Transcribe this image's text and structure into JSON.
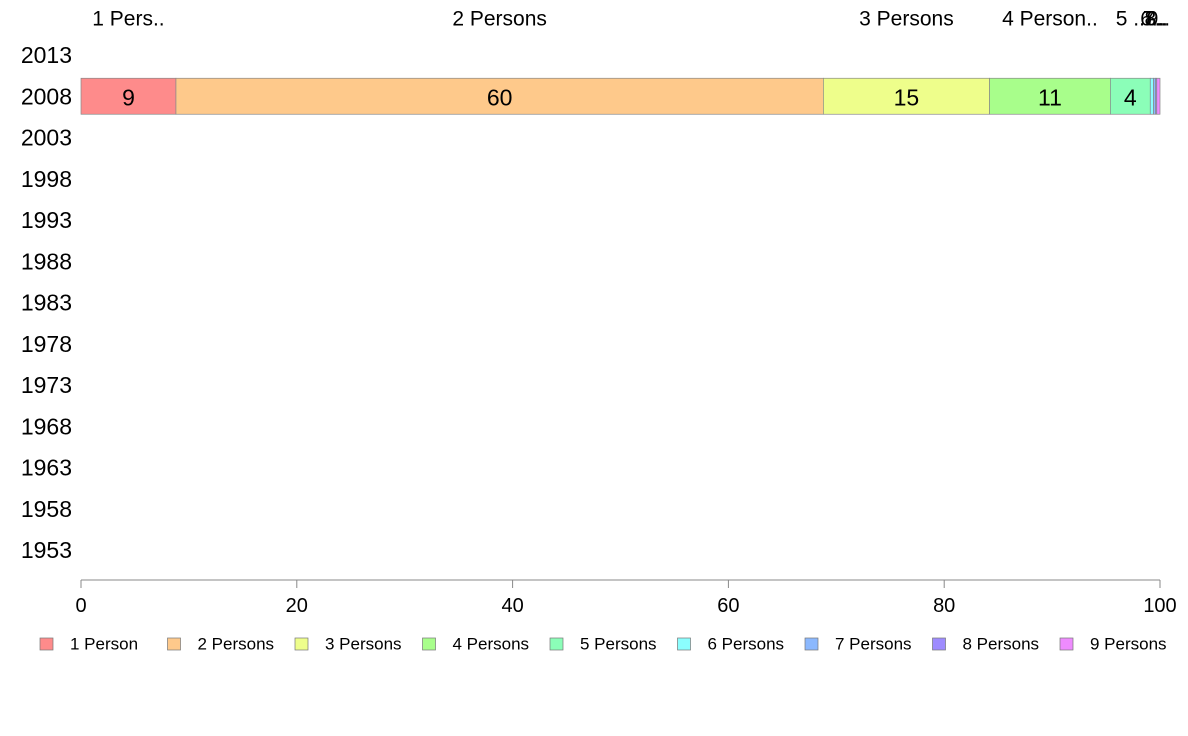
{
  "chart_data": {
    "type": "bar",
    "orientation": "horizontal",
    "stacked": true,
    "categories": [
      "2013",
      "2008",
      "2003",
      "1998",
      "1993",
      "1988",
      "1983",
      "1978",
      "1973",
      "1968",
      "1963",
      "1958",
      "1953"
    ],
    "series": [
      {
        "name": "1 Person",
        "color": "#fe8b8b",
        "values": [
          null,
          8.8,
          null,
          null,
          null,
          null,
          null,
          null,
          null,
          null,
          null,
          null,
          null
        ],
        "bar_label": "9",
        "top_label": "1 Pers.."
      },
      {
        "name": "2 Persons",
        "color": "#fec98b",
        "values": [
          null,
          60.0,
          null,
          null,
          null,
          null,
          null,
          null,
          null,
          null,
          null,
          null,
          null
        ],
        "bar_label": "60",
        "top_label": "2 Persons"
      },
      {
        "name": "3 Persons",
        "color": "#eefe8b",
        "values": [
          null,
          15.4,
          null,
          null,
          null,
          null,
          null,
          null,
          null,
          null,
          null,
          null,
          null
        ],
        "bar_label": "15",
        "top_label": "3 Persons"
      },
      {
        "name": "4 Persons",
        "color": "#a8fe8b",
        "values": [
          null,
          11.2,
          null,
          null,
          null,
          null,
          null,
          null,
          null,
          null,
          null,
          null,
          null
        ],
        "bar_label": "11",
        "top_label": "4 Person.."
      },
      {
        "name": "5 Persons",
        "color": "#8bfeb8",
        "values": [
          null,
          3.7,
          null,
          null,
          null,
          null,
          null,
          null,
          null,
          null,
          null,
          null,
          null
        ],
        "bar_label": "4",
        "top_label": "5 .."
      },
      {
        "name": "6 Persons",
        "color": "#8bfefe",
        "values": [
          null,
          0.3,
          null,
          null,
          null,
          null,
          null,
          null,
          null,
          null,
          null,
          null,
          null
        ],
        "bar_label": "",
        "top_label": "6.."
      },
      {
        "name": "7 Persons",
        "color": "#8bb8fe",
        "values": [
          null,
          0.2,
          null,
          null,
          null,
          null,
          null,
          null,
          null,
          null,
          null,
          null,
          null
        ],
        "bar_label": "",
        "top_label": "7.."
      },
      {
        "name": "8 Persons",
        "color": "#9e8bfe",
        "values": [
          null,
          0.1,
          null,
          null,
          null,
          null,
          null,
          null,
          null,
          null,
          null,
          null,
          null
        ],
        "bar_label": "",
        "top_label": "8.."
      },
      {
        "name": "9 Persons",
        "color": "#ee8bfe",
        "values": [
          null,
          0.3,
          null,
          null,
          null,
          null,
          null,
          null,
          null,
          null,
          null,
          null,
          null
        ],
        "bar_label": "",
        "top_label": "9.."
      }
    ],
    "xlim": [
      0,
      100
    ],
    "xticks": [
      "0",
      "20",
      "40",
      "60",
      "80",
      "100"
    ],
    "title": "",
    "xlabel": "",
    "ylabel": "",
    "grid": false,
    "legend_position": "bottom"
  }
}
